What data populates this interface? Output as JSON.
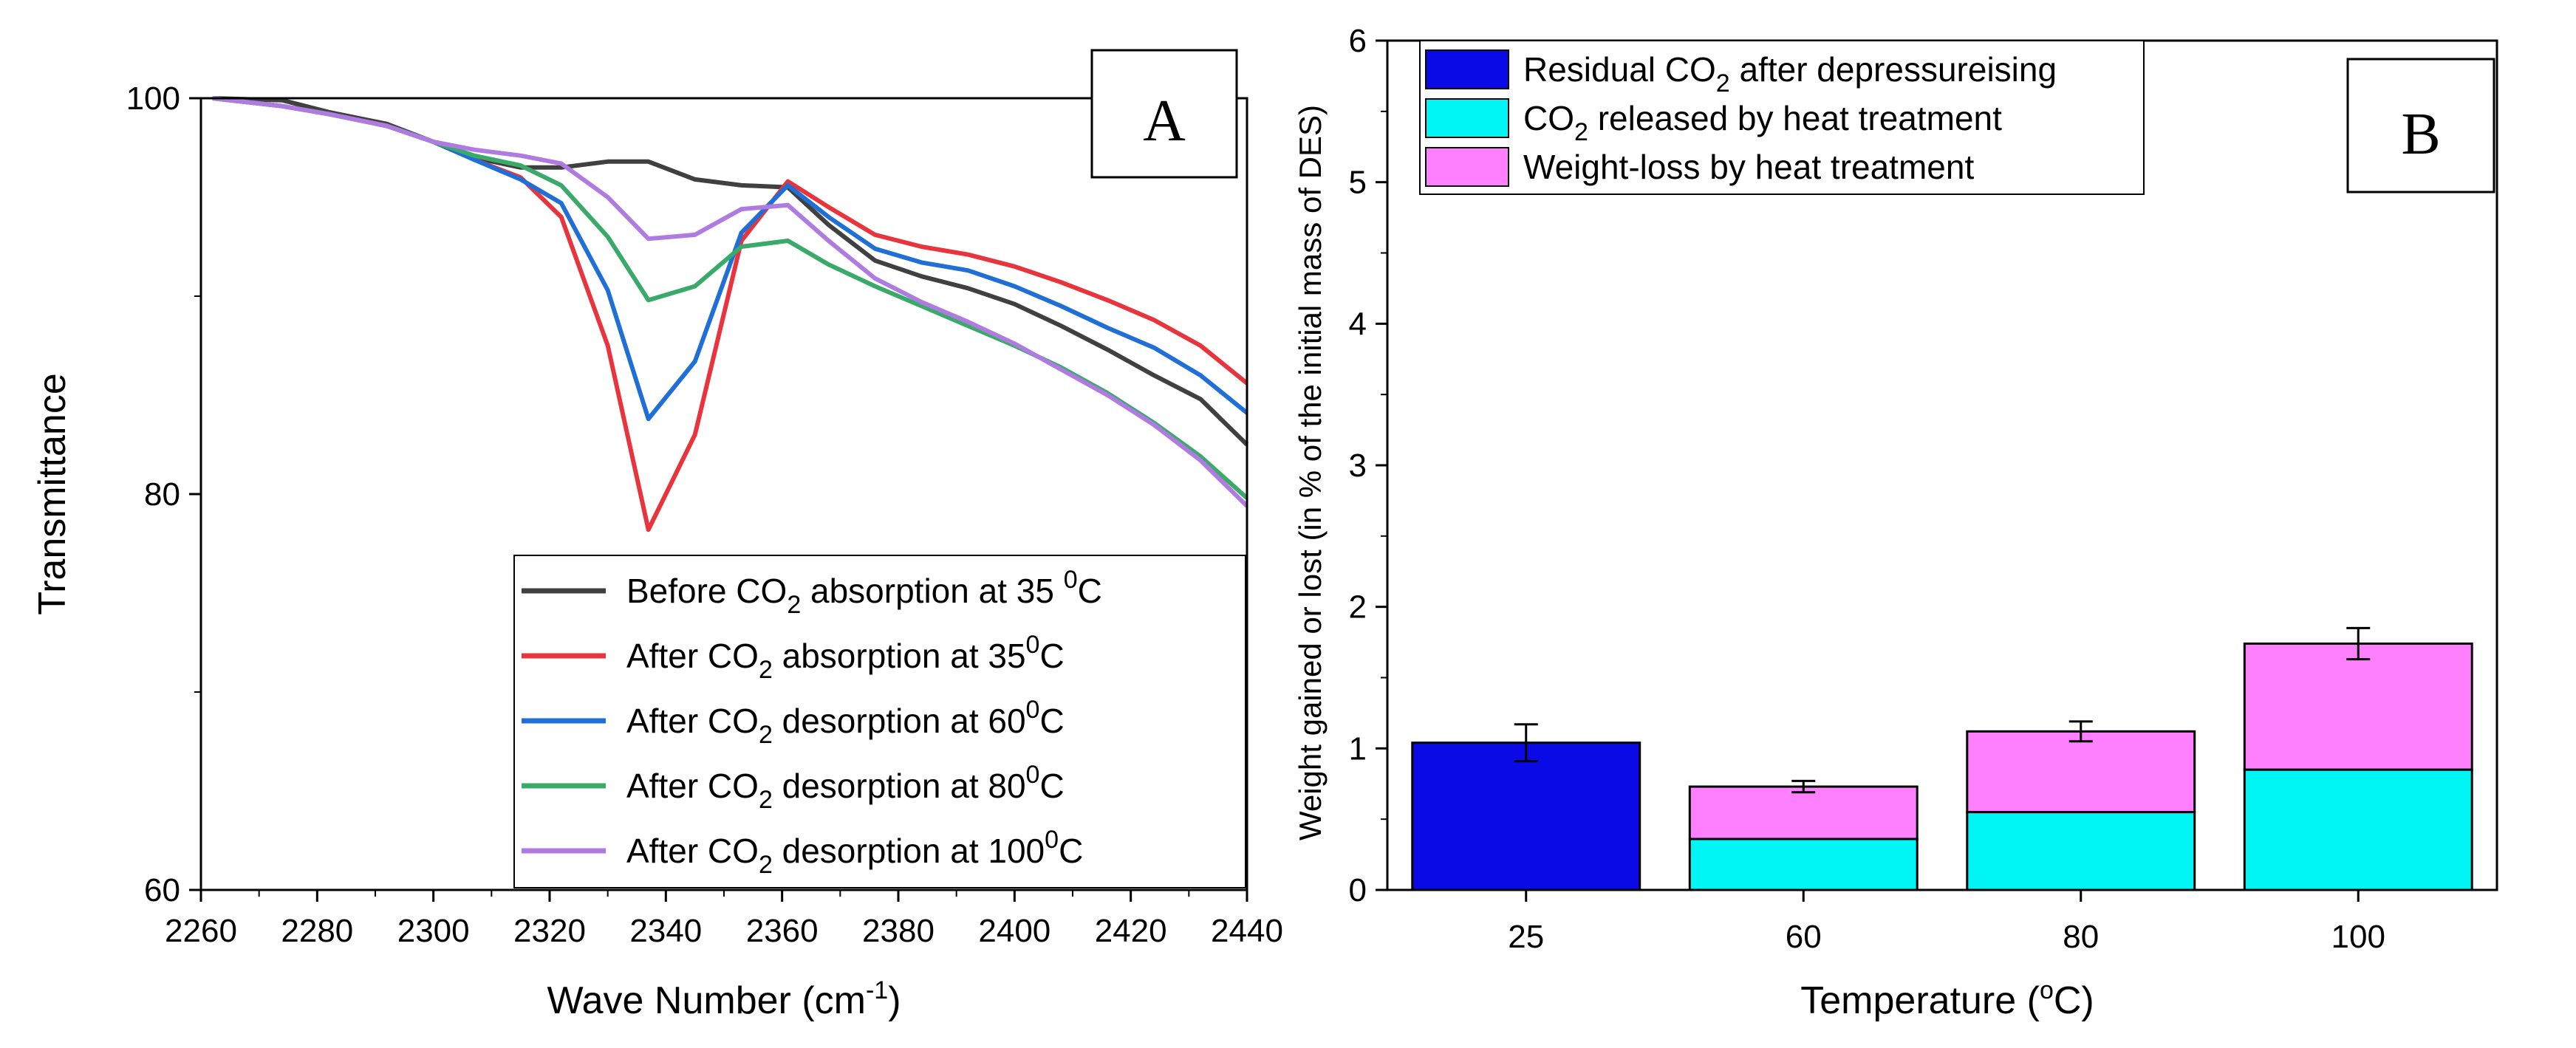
{
  "chart_data": [
    {
      "panel_label": "A",
      "type": "line",
      "xlabel": "Wave Number (cm",
      "xlabel_sup": "-1",
      "xlabel_end": ")",
      "ylabel": "Transmittance",
      "xlim": [
        2260,
        2440
      ],
      "ylim": [
        60,
        100
      ],
      "x_ticks": [
        "2260",
        "2280",
        "2300",
        "2320",
        "2340",
        "2360",
        "2380",
        "2400",
        "2420",
        "2440"
      ],
      "x_tick_values": [
        2260,
        2280,
        2300,
        2320,
        2340,
        2360,
        2380,
        2400,
        2420,
        2440
      ],
      "y_ticks": [
        "60",
        "80",
        "100"
      ],
      "y_tick_values": [
        60,
        80,
        100
      ],
      "legend_position": "bottom-right",
      "series": [
        {
          "pre": "Before CO",
          "sub": "2",
          "mid": " absorption at 35 ",
          "sup": "0",
          "post": "C",
          "color": "#404040",
          "x": [
            2262,
            2274,
            2282,
            2292,
            2300,
            2307,
            2315,
            2322,
            2330,
            2337,
            2345,
            2353,
            2361,
            2368,
            2376,
            2384,
            2392,
            2400,
            2408,
            2416,
            2424,
            2432,
            2440
          ],
          "y": [
            100,
            99.9,
            99.3,
            98.7,
            97.8,
            97.0,
            96.5,
            96.5,
            96.8,
            96.8,
            95.9,
            95.6,
            95.5,
            93.6,
            91.8,
            91.0,
            90.4,
            89.6,
            88.5,
            87.3,
            86.0,
            84.8,
            82.5
          ]
        },
        {
          "pre": "After CO",
          "sub": "2",
          "mid": " absorption at 35",
          "sup": "0",
          "post": "C",
          "color": "#e8343c",
          "x": [
            2262,
            2274,
            2282,
            2292,
            2300,
            2307,
            2315,
            2322,
            2330,
            2337,
            2345,
            2353,
            2361,
            2368,
            2376,
            2384,
            2392,
            2400,
            2408,
            2416,
            2424,
            2432,
            2440
          ],
          "y": [
            100,
            99.6,
            99.2,
            98.6,
            97.8,
            96.9,
            96.0,
            94.0,
            87.5,
            78.2,
            83.0,
            92.8,
            95.8,
            94.5,
            93.1,
            92.5,
            92.1,
            91.5,
            90.7,
            89.8,
            88.8,
            87.5,
            85.6
          ]
        },
        {
          "pre": "After CO",
          "sub": "2",
          "mid": " desorption at 60",
          "sup": "0",
          "post": "C",
          "color": "#1f6fd6",
          "x": [
            2262,
            2274,
            2282,
            2292,
            2300,
            2307,
            2315,
            2322,
            2330,
            2337,
            2345,
            2353,
            2361,
            2368,
            2376,
            2384,
            2392,
            2400,
            2408,
            2416,
            2424,
            2432,
            2440
          ],
          "y": [
            100,
            99.6,
            99.2,
            98.6,
            97.8,
            96.9,
            95.9,
            94.7,
            90.3,
            83.8,
            86.7,
            93.2,
            95.6,
            94.0,
            92.4,
            91.7,
            91.3,
            90.5,
            89.5,
            88.4,
            87.4,
            86.0,
            84.1
          ]
        },
        {
          "pre": "After CO",
          "sub": "2",
          "mid": " desorption at 80",
          "sup": "0",
          "post": "C",
          "color": "#3aaa6a",
          "x": [
            2262,
            2274,
            2282,
            2292,
            2300,
            2307,
            2315,
            2322,
            2330,
            2337,
            2345,
            2353,
            2361,
            2368,
            2376,
            2384,
            2392,
            2400,
            2408,
            2416,
            2424,
            2432,
            2440
          ],
          "y": [
            100,
            99.6,
            99.2,
            98.6,
            97.8,
            97.1,
            96.6,
            95.6,
            93.0,
            89.8,
            90.5,
            92.5,
            92.8,
            91.6,
            90.5,
            89.5,
            88.5,
            87.5,
            86.4,
            85.1,
            83.6,
            81.9,
            79.8
          ]
        },
        {
          "pre": "After CO",
          "sub": "2",
          "mid": " desorption at 100",
          "sup": "0",
          "post": "C",
          "color": "#b07be0",
          "x": [
            2262,
            2274,
            2282,
            2292,
            2300,
            2307,
            2315,
            2322,
            2330,
            2337,
            2345,
            2353,
            2361,
            2368,
            2376,
            2384,
            2392,
            2400,
            2408,
            2416,
            2424,
            2432,
            2440
          ],
          "y": [
            100,
            99.6,
            99.2,
            98.6,
            97.8,
            97.4,
            97.1,
            96.7,
            95.0,
            92.9,
            93.1,
            94.4,
            94.6,
            92.8,
            90.9,
            89.7,
            88.7,
            87.6,
            86.3,
            85.0,
            83.5,
            81.7,
            79.4
          ]
        }
      ]
    },
    {
      "panel_label": "B",
      "type": "bar",
      "stacked": true,
      "xlabel": "Temperature (",
      "xlabel_sup": "o",
      "xlabel_end": "C)",
      "ylabel": "Weight gained or lost (in % of the initial mass of DES)",
      "ylim": [
        0,
        6
      ],
      "y_ticks": [
        "0",
        "1",
        "2",
        "3",
        "4",
        "5",
        "6"
      ],
      "y_tick_values": [
        0,
        1,
        2,
        3,
        4,
        5,
        6
      ],
      "categories": [
        "25",
        "60",
        "80",
        "100"
      ],
      "legend_position": "top-left",
      "series": [
        {
          "pre": "Residual CO",
          "sub": "2",
          "post": " after depressureising",
          "color": "#0a0ae6",
          "values": [
            1.04,
            0,
            0,
            0
          ]
        },
        {
          "pre": "CO",
          "sub": "2",
          "post": " released by heat treatment",
          "color": "#00f5f5",
          "values": [
            0,
            0.36,
            0.55,
            0.85
          ]
        },
        {
          "pre": "Weight-loss by heat treatment",
          "sub": "",
          "post": "",
          "color": "#ff80ff",
          "values": [
            0,
            0.37,
            0.57,
            0.89
          ]
        }
      ],
      "totals": [
        1.04,
        0.73,
        1.12,
        1.74
      ],
      "error": [
        0.13,
        0.04,
        0.07,
        0.11
      ]
    }
  ]
}
